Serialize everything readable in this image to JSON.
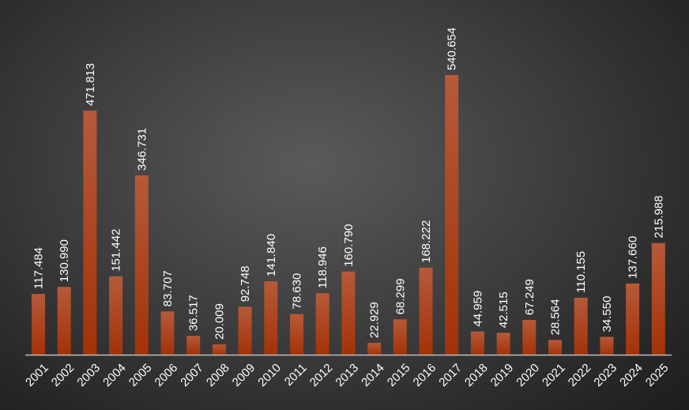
{
  "chart_data": {
    "type": "bar",
    "title": "",
    "xlabel": "",
    "ylabel": "",
    "categories": [
      "2001",
      "2002",
      "2003",
      "2004",
      "2005",
      "2006",
      "2007",
      "2008",
      "2009",
      "2010",
      "2011",
      "2012",
      "2013",
      "2014",
      "2015",
      "2016",
      "2017",
      "2018",
      "2019",
      "2020",
      "2021",
      "2022",
      "2023",
      "2024",
      "2025"
    ],
    "values": [
      117.484,
      130.99,
      471.813,
      151.442,
      346.731,
      83.707,
      36.517,
      20.009,
      92.748,
      141.84,
      78.63,
      118.946,
      160.79,
      22.929,
      68.299,
      168.222,
      540.654,
      44.959,
      42.515,
      67.249,
      28.564,
      110.155,
      34.55,
      137.66,
      215.988
    ],
    "value_labels": [
      "117.484",
      "130.990",
      "471.813",
      "151.442",
      "346.731",
      "83.707",
      "36.517",
      "20.009",
      "92.748",
      "141.840",
      "78.630",
      "118.946",
      "160.790",
      "22.929",
      "68.299",
      "168.222",
      "540.654",
      "44.959",
      "42.515",
      "67.249",
      "28.564",
      "110.155",
      "34.550",
      "137.660",
      "215.988"
    ],
    "ylim": [
      0,
      540.654
    ],
    "grid": false,
    "colors": {
      "bar_top": "#b65a3a",
      "bar_bottom": "#a23208",
      "axis": "#bfbfbf",
      "text": "#ffffff"
    }
  }
}
